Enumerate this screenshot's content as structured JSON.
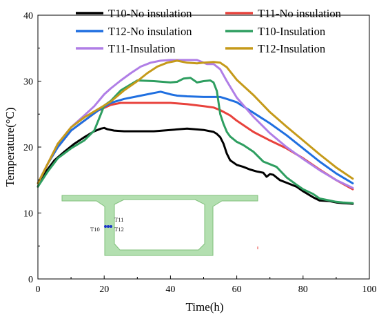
{
  "chart_data": {
    "type": "line",
    "title": "",
    "xlabel": "Time(h)",
    "ylabel": "Temperature(°C)",
    "xlim": [
      0,
      100
    ],
    "ylim": [
      0,
      40
    ],
    "xticks": [
      "0",
      "20",
      "40",
      "60",
      "80",
      "100"
    ],
    "yticks": [
      "0",
      "10",
      "20",
      "30",
      "40"
    ],
    "grid": false,
    "legend_placement": "top, two columns",
    "series": [
      {
        "name": "T10-No insulation",
        "color": "#000000",
        "x": [
          0,
          2,
          5,
          8,
          11,
          14,
          17,
          19,
          20,
          21,
          23,
          26,
          30,
          35,
          40,
          45,
          50,
          53,
          54,
          55,
          56,
          57,
          58,
          60,
          62,
          64,
          66,
          68,
          69,
          70,
          71,
          73,
          75,
          78,
          80,
          83,
          85,
          88,
          90,
          92,
          95
        ],
        "y": [
          14,
          16,
          18,
          19.3,
          20.5,
          21.5,
          22.4,
          22.8,
          22.9,
          22.7,
          22.5,
          22.4,
          22.4,
          22.4,
          22.6,
          22.8,
          22.6,
          22.3,
          22.0,
          21.5,
          20.5,
          19.0,
          18.0,
          17.3,
          17.0,
          16.6,
          16.3,
          16.1,
          15.5,
          15.9,
          15.8,
          15.0,
          14.6,
          14.0,
          13.3,
          12.4,
          11.9,
          11.8,
          11.6,
          11.5,
          11.4
        ]
      },
      {
        "name": "T11-No insulation",
        "color": "#e8423c",
        "x": [
          0,
          3,
          6,
          10,
          14,
          18,
          22,
          25,
          30,
          35,
          40,
          45,
          50,
          53,
          55,
          58,
          60,
          65,
          70,
          75,
          80,
          85,
          90,
          95
        ],
        "y": [
          14.5,
          17.5,
          20,
          22.5,
          24,
          25.5,
          26.4,
          26.7,
          26.7,
          26.7,
          26.7,
          26.5,
          26.2,
          26.0,
          25.6,
          24.8,
          24.0,
          22.3,
          21.0,
          19.8,
          18.3,
          16.6,
          15.0,
          13.6
        ]
      },
      {
        "name": "T12-No insulation",
        "color": "#1f6fe0",
        "x": [
          0,
          3,
          6,
          10,
          14,
          18,
          22,
          26,
          30,
          35,
          37,
          40,
          42,
          45,
          50,
          55,
          57,
          60,
          65,
          70,
          75,
          80,
          85,
          90,
          95
        ],
        "y": [
          14.5,
          17.5,
          20,
          22.5,
          24,
          25.5,
          26.7,
          27.3,
          27.7,
          28.2,
          28.4,
          28.0,
          27.8,
          27.7,
          27.6,
          27.6,
          27.3,
          26.8,
          25.2,
          23.6,
          21.8,
          19.8,
          17.8,
          16.0,
          14.5
        ]
      },
      {
        "name": "T10-Insulation",
        "color": "#2e9e60",
        "x": [
          0,
          3,
          6,
          10,
          14,
          17,
          19,
          20,
          22,
          25,
          30,
          35,
          40,
          42,
          44,
          46,
          48,
          50,
          52,
          53,
          54,
          55,
          56,
          57,
          58,
          60,
          62,
          65,
          68,
          70,
          72,
          75,
          78,
          80,
          83,
          85,
          88,
          90,
          92,
          95
        ],
        "y": [
          14,
          16.3,
          18.3,
          19.8,
          21,
          22.5,
          25,
          26.3,
          27,
          28.6,
          30.1,
          30.0,
          29.8,
          29.9,
          30.4,
          30.5,
          29.8,
          30.0,
          30.1,
          29.8,
          28.5,
          25.0,
          23.5,
          22.3,
          21.6,
          20.8,
          20.3,
          19.3,
          17.8,
          17.4,
          17.0,
          15.4,
          14.3,
          13.6,
          12.9,
          12.2,
          11.9,
          11.7,
          11.6,
          11.5
        ]
      },
      {
        "name": "T11-Insulation",
        "color": "#b07ee6",
        "x": [
          0,
          3,
          6,
          10,
          14,
          17,
          20,
          22,
          25,
          28,
          31,
          34,
          37,
          40,
          45,
          48,
          51,
          53,
          55,
          57,
          60,
          65,
          70,
          75,
          80,
          85,
          90,
          95
        ],
        "y": [
          14.5,
          17.5,
          20.5,
          23,
          24.8,
          26.2,
          28.0,
          28.9,
          30.1,
          31.2,
          32.2,
          32.8,
          33.1,
          33.2,
          33.2,
          33.2,
          32.6,
          32.6,
          31.8,
          30.0,
          27.5,
          24.6,
          22.1,
          20.0,
          18.2,
          16.5,
          15.0,
          13.8
        ]
      },
      {
        "name": "T12-Insulation",
        "color": "#c59a1a",
        "x": [
          0,
          3,
          6,
          10,
          14,
          18,
          22,
          26,
          30,
          33,
          36,
          39,
          42,
          45,
          48,
          50,
          53,
          55,
          57,
          60,
          65,
          70,
          75,
          80,
          85,
          90,
          95
        ],
        "y": [
          14.5,
          17.5,
          20.5,
          23,
          24.5,
          25.7,
          26.9,
          28.6,
          30.0,
          31.2,
          32.2,
          32.8,
          33.1,
          32.8,
          32.7,
          32.8,
          32.9,
          32.8,
          32.1,
          30.2,
          27.9,
          25.3,
          23.1,
          21.0,
          18.9,
          16.9,
          15.2
        ]
      }
    ],
    "inset": {
      "labels": [
        "T11",
        "T10",
        "T12"
      ]
    }
  }
}
